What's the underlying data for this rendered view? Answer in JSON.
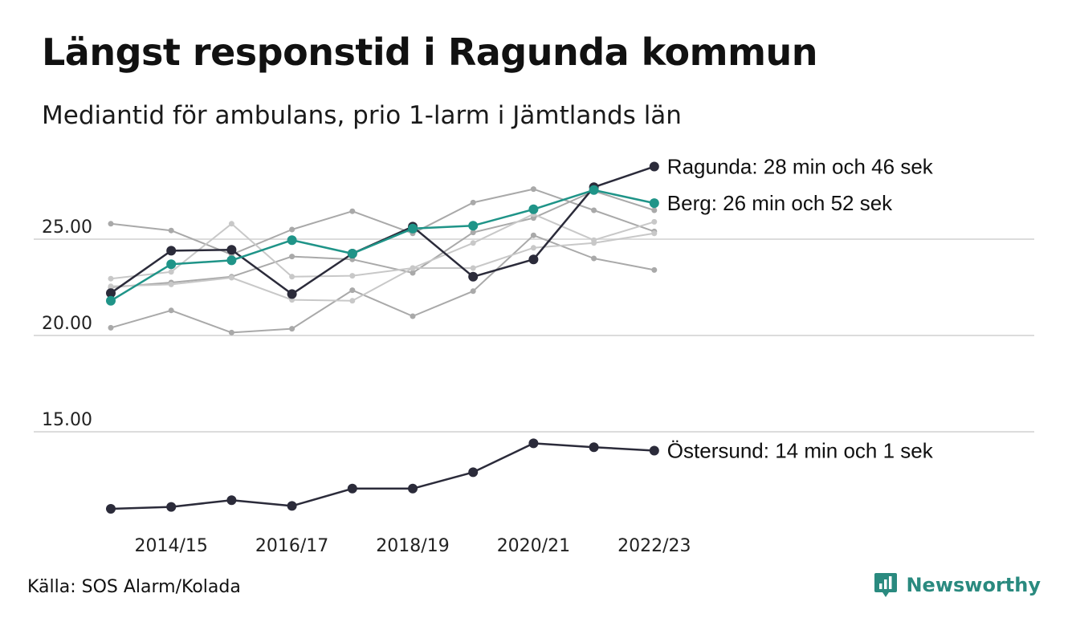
{
  "header": {
    "title": "Längst responstid i Ragunda kommun",
    "subtitle": "Mediantid för ambulans, prio 1-larm i Jämtlands län"
  },
  "footer": {
    "source": "Källa: SOS Alarm/Kolada",
    "brand": "Newsworthy",
    "brand_icon": "newsworthy-logo-icon",
    "brand_color": "#2a8a7f"
  },
  "chart_data": {
    "type": "line",
    "x": [
      "2013/14",
      "2014/15",
      "2015/16",
      "2016/17",
      "2017/18",
      "2018/19",
      "2019/20",
      "2020/21",
      "2021/22",
      "2022/23"
    ],
    "x_tick_labels": [
      "2014/15",
      "2016/17",
      "2018/19",
      "2020/21",
      "2022/23"
    ],
    "y_ticks": [
      15,
      20,
      25
    ],
    "y_tick_labels": [
      "15.00",
      "20.00",
      "25.00"
    ],
    "ylim": [
      11,
      29
    ],
    "grid": true,
    "highlight_series": [
      {
        "label": "Ragunda: 28 min och 46 sek",
        "color": "#2b2b3a",
        "values": [
          22.2,
          24.4,
          24.45,
          22.15,
          24.25,
          25.65,
          23.05,
          23.95,
          27.7,
          28.77
        ]
      },
      {
        "label": "Berg: 26 min och 52 sek",
        "color": "#1f9488",
        "values": [
          21.8,
          23.7,
          23.9,
          24.95,
          24.25,
          25.55,
          25.7,
          26.55,
          27.55,
          26.87
        ]
      },
      {
        "label": "Östersund: 14 min och 1 sek",
        "color": "#2b2b3a",
        "values": [
          11.0,
          11.1,
          11.45,
          11.15,
          12.05,
          12.05,
          12.9,
          14.4,
          14.2,
          14.02
        ]
      }
    ],
    "background_series": [
      {
        "color": "#a9a9a9",
        "values": [
          25.8,
          25.45,
          24.2,
          25.5,
          26.45,
          25.3,
          26.9,
          27.6,
          26.5,
          25.4
        ]
      },
      {
        "color": "#a9a9a9",
        "values": [
          20.4,
          21.3,
          20.15,
          20.35,
          22.35,
          21.0,
          22.3,
          25.2,
          24.0,
          23.4
        ]
      },
      {
        "color": "#a9a9a9",
        "values": [
          22.5,
          22.75,
          23.05,
          24.1,
          23.95,
          23.25,
          25.35,
          26.1,
          27.5,
          26.5
        ]
      },
      {
        "color": "#c8c8c8",
        "values": [
          22.95,
          23.3,
          25.8,
          23.05,
          23.1,
          23.5,
          24.8,
          26.3,
          24.95,
          25.9
        ]
      },
      {
        "color": "#c8c8c8",
        "values": [
          22.55,
          22.65,
          23.0,
          21.85,
          21.8,
          23.5,
          23.5,
          24.55,
          24.8,
          25.3
        ]
      }
    ]
  }
}
